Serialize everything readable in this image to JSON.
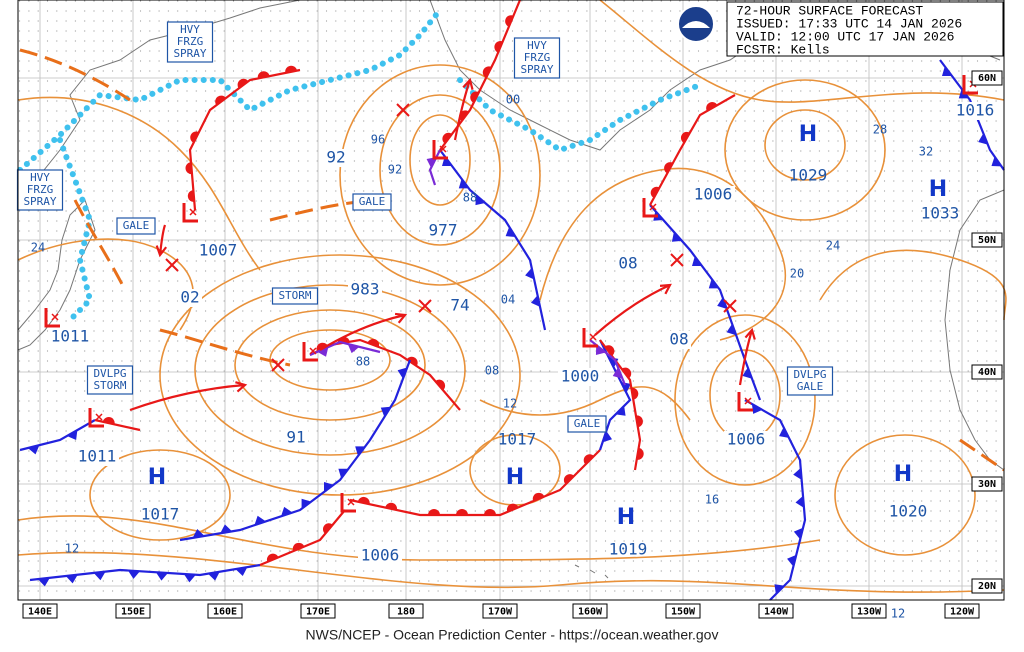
{
  "header": {
    "title": "72-HOUR SURFACE FORECAST",
    "issued": "ISSUED: 17:33 UTC 14 JAN 2026",
    "valid": "VALID:  12:00 UTC 17 JAN 2026",
    "forecaster": "FCSTR:  Kells"
  },
  "footer": "NWS/NCEP - Ocean Prediction Center - https://ocean.weather.gov",
  "longitudes": [
    "140E",
    "150E",
    "160E",
    "170E",
    "180",
    "170W",
    "160W",
    "150W",
    "140W",
    "130W",
    "120W"
  ],
  "latitudes": [
    "60N",
    "50N",
    "40N",
    "30N",
    "20N"
  ],
  "high_centers": [
    {
      "symbol": "H",
      "pressure": "1029"
    },
    {
      "symbol": "H",
      "pressure": "1033"
    },
    {
      "symbol": "H",
      "pressure": "1017"
    },
    {
      "symbol": "H",
      "pressure": "1017"
    },
    {
      "symbol": "H",
      "pressure": "1019"
    },
    {
      "symbol": "H",
      "pressure": "1020"
    }
  ],
  "low_pressures": [
    "1007",
    "02",
    "1011",
    "977",
    "983",
    "74",
    "1000",
    "1006",
    "1006",
    "1016",
    "1011",
    "1006",
    "91",
    "92",
    "08",
    "08"
  ],
  "isobar_labels": [
    "96",
    "92",
    "88",
    "00",
    "04",
    "08",
    "12",
    "88",
    "28",
    "32",
    "24",
    "20",
    "16",
    "12",
    "12",
    "24"
  ],
  "warnings": [
    {
      "lines": [
        "HVY",
        "FRZG",
        "SPRAY"
      ]
    },
    {
      "lines": [
        "HVY",
        "FRZG",
        "SPRAY"
      ]
    },
    {
      "lines": [
        "HVY",
        "FRZG",
        "SPRAY"
      ]
    },
    {
      "lines": [
        "GALE"
      ]
    },
    {
      "lines": [
        "GALE"
      ]
    },
    {
      "lines": [
        "STORM"
      ]
    },
    {
      "lines": [
        "DVLPG",
        "STORM"
      ]
    },
    {
      "lines": [
        "GALE"
      ]
    },
    {
      "lines": [
        "DVLPG",
        "GALE"
      ]
    }
  ]
}
